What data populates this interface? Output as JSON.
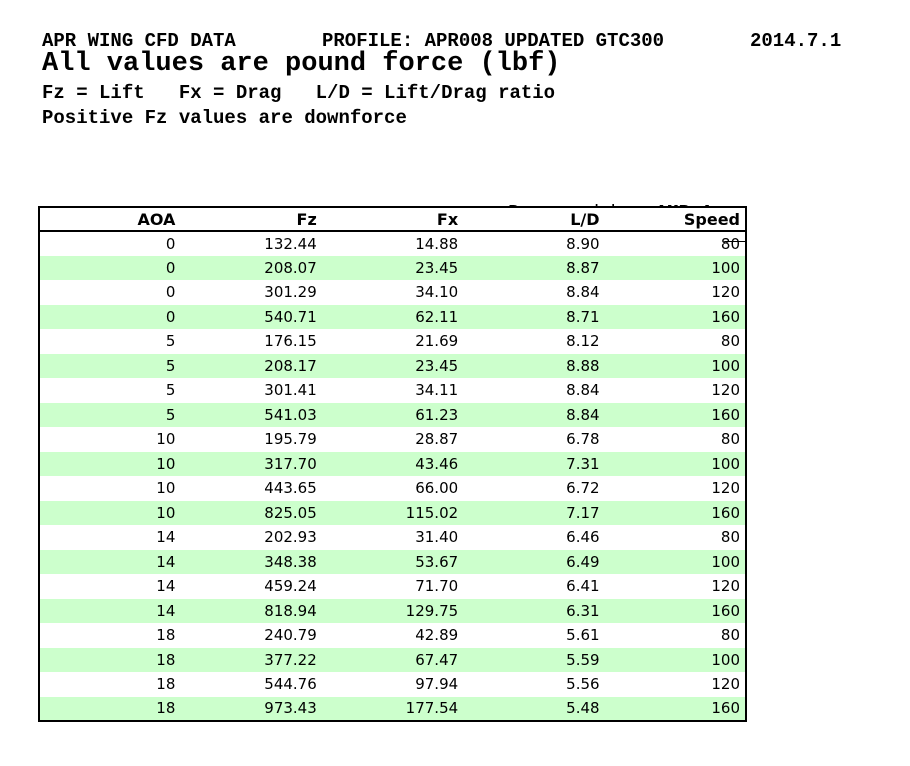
{
  "title_block": {
    "name": "APR WING CFD DATA",
    "profile": "PROFILE: APR008 UPDATED GTC300",
    "version": "2014.7.1",
    "subtitle": "All values are pound force (lbf)",
    "legend": "Fz = Lift   Fx = Drag   L/D = Lift/Drag ratio",
    "note": "Positive Fz values are downforce"
  },
  "prepared_by": {
    "label": "Prepared by:",
    "value": "AMB Aero"
  },
  "table": {
    "columns": [
      "AOA",
      "Fz",
      "Fx",
      "L/D",
      "Speed"
    ],
    "rows": [
      [
        "0",
        "132.44",
        "14.88",
        "8.90",
        "80"
      ],
      [
        "0",
        "208.07",
        "23.45",
        "8.87",
        "100"
      ],
      [
        "0",
        "301.29",
        "34.10",
        "8.84",
        "120"
      ],
      [
        "0",
        "540.71",
        "62.11",
        "8.71",
        "160"
      ],
      [
        "5",
        "176.15",
        "21.69",
        "8.12",
        "80"
      ],
      [
        "5",
        "208.17",
        "23.45",
        "8.88",
        "100"
      ],
      [
        "5",
        "301.41",
        "34.11",
        "8.84",
        "120"
      ],
      [
        "5",
        "541.03",
        "61.23",
        "8.84",
        "160"
      ],
      [
        "10",
        "195.79",
        "28.87",
        "6.78",
        "80"
      ],
      [
        "10",
        "317.70",
        "43.46",
        "7.31",
        "100"
      ],
      [
        "10",
        "443.65",
        "66.00",
        "6.72",
        "120"
      ],
      [
        "10",
        "825.05",
        "115.02",
        "7.17",
        "160"
      ],
      [
        "14",
        "202.93",
        "31.40",
        "6.46",
        "80"
      ],
      [
        "14",
        "348.38",
        "53.67",
        "6.49",
        "100"
      ],
      [
        "14",
        "459.24",
        "71.70",
        "6.41",
        "120"
      ],
      [
        "14",
        "818.94",
        "129.75",
        "6.31",
        "160"
      ],
      [
        "18",
        "240.79",
        "42.89",
        "5.61",
        "80"
      ],
      [
        "18",
        "377.22",
        "67.47",
        "5.59",
        "100"
      ],
      [
        "18",
        "544.76",
        "97.94",
        "5.56",
        "120"
      ],
      [
        "18",
        "973.43",
        "177.54",
        "5.48",
        "160"
      ]
    ]
  },
  "colors": {
    "row_stripe": "#ccffcc",
    "border": "#000000",
    "text": "#000000",
    "background": "#ffffff"
  }
}
